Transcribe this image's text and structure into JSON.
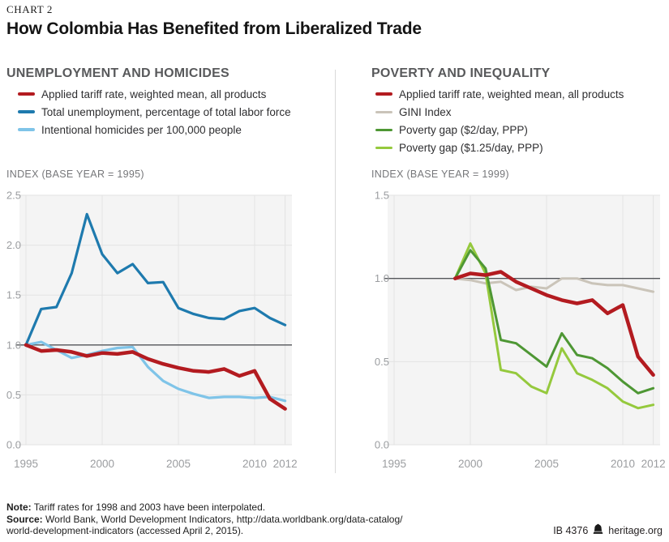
{
  "header": {
    "kicker": "CHART 2",
    "title": "How Colombia Has Benefited from Liberalized Trade"
  },
  "colors": {
    "accent_red": "#b31b20",
    "blue": "#1e7aae",
    "light_blue": "#7fc4e8",
    "gini_tan": "#cac4b9",
    "dark_green": "#4e9734",
    "light_green": "#95c93d",
    "plot_bg": "#f4f4f4",
    "grid": "#e3e3e3",
    "ref_line": "#54565a",
    "tick_label": "#9b9da0"
  },
  "chart_data": [
    {
      "type": "line",
      "section_title": "UNEMPLOYMENT AND HOMICIDES",
      "index_label": "INDEX (BASE YEAR = 1995)",
      "x": [
        1995,
        1996,
        1997,
        1998,
        1999,
        2000,
        2001,
        2002,
        2003,
        2004,
        2005,
        2006,
        2007,
        2008,
        2009,
        2010,
        2011,
        2012
      ],
      "xlim": [
        1995,
        2012
      ],
      "ylim": [
        0,
        2.5
      ],
      "yticks": [
        0.0,
        0.5,
        1.0,
        1.5,
        2.0,
        2.5
      ],
      "xticks": [
        1995,
        2000,
        2005,
        2010,
        2012
      ],
      "ref_line": 1.0,
      "grid": true,
      "legend_position": "top",
      "series": [
        {
          "name": "Applied tariff rate, weighted mean, all products",
          "color": "#b31b20",
          "width": 4.5,
          "z": 3,
          "values": [
            1.0,
            0.94,
            0.95,
            0.93,
            0.89,
            0.92,
            0.91,
            0.93,
            0.86,
            0.81,
            0.77,
            0.74,
            0.73,
            0.76,
            0.69,
            0.74,
            0.46,
            0.36
          ]
        },
        {
          "name": "Total unemployment, percentage of total labor force",
          "color": "#1e7aae",
          "width": 3.2,
          "z": 2,
          "values": [
            1.0,
            1.36,
            1.38,
            1.72,
            2.31,
            1.91,
            1.72,
            1.81,
            1.62,
            1.63,
            1.37,
            1.31,
            1.27,
            1.26,
            1.34,
            1.37,
            1.27,
            1.2
          ]
        },
        {
          "name": "Intentional homicides per 100,000 people",
          "color": "#7fc4e8",
          "width": 3.2,
          "z": 1,
          "values": [
            1.0,
            1.03,
            0.95,
            0.87,
            0.9,
            0.94,
            0.97,
            0.98,
            0.78,
            0.64,
            0.56,
            0.51,
            0.47,
            0.48,
            0.48,
            0.47,
            0.48,
            0.44
          ]
        }
      ]
    },
    {
      "type": "line",
      "section_title": "POVERTY AND INEQUALITY",
      "index_label": "INDEX (BASE YEAR = 1999)",
      "x": [
        1999,
        2000,
        2001,
        2002,
        2003,
        2004,
        2005,
        2006,
        2007,
        2008,
        2009,
        2010,
        2011,
        2012
      ],
      "xlim": [
        1995,
        2012
      ],
      "ylim": [
        0,
        1.5
      ],
      "yticks": [
        0.0,
        0.5,
        1.0,
        1.5
      ],
      "xticks": [
        1995,
        2000,
        2005,
        2010,
        2012
      ],
      "ref_line": 1.0,
      "grid": true,
      "legend_position": "top",
      "series": [
        {
          "name": "Applied tariff rate, weighted mean, all products",
          "color": "#b31b20",
          "width": 4.5,
          "z": 4,
          "values": [
            1.0,
            1.03,
            1.02,
            1.04,
            0.98,
            0.94,
            0.9,
            0.87,
            0.85,
            0.87,
            0.79,
            0.84,
            0.53,
            0.42
          ]
        },
        {
          "name": "GINI Index",
          "color": "#cac4b9",
          "width": 3,
          "z": 1,
          "values": [
            1.0,
            0.99,
            0.97,
            0.98,
            0.93,
            0.95,
            0.94,
            1.0,
            1.0,
            0.97,
            0.96,
            0.96,
            0.94,
            0.92
          ]
        },
        {
          "name": "Poverty gap ($2/day, PPP)",
          "color": "#4e9734",
          "width": 3,
          "z": 3,
          "values": [
            1.0,
            1.17,
            1.06,
            0.63,
            0.61,
            0.54,
            0.47,
            0.67,
            0.54,
            0.52,
            0.46,
            0.38,
            0.31,
            0.34
          ]
        },
        {
          "name": "Poverty gap ($1.25/day, PPP)",
          "color": "#95c93d",
          "width": 3,
          "z": 2,
          "values": [
            1.0,
            1.21,
            1.03,
            0.45,
            0.43,
            0.35,
            0.31,
            0.58,
            0.43,
            0.39,
            0.34,
            0.26,
            0.22,
            0.24
          ]
        }
      ]
    }
  ],
  "footer": {
    "note_label": "Note:",
    "note_text": "Tariff rates for 1998 and 2003 have been interpolated.",
    "source_label": "Source:",
    "source_line1": "World Bank, World Development Indicators, http://data.worldbank.org/data-catalog/",
    "source_line2": "world-development-indicators (accessed April 2, 2015).",
    "doc_id": "IB 4376",
    "site": "heritage.org"
  }
}
